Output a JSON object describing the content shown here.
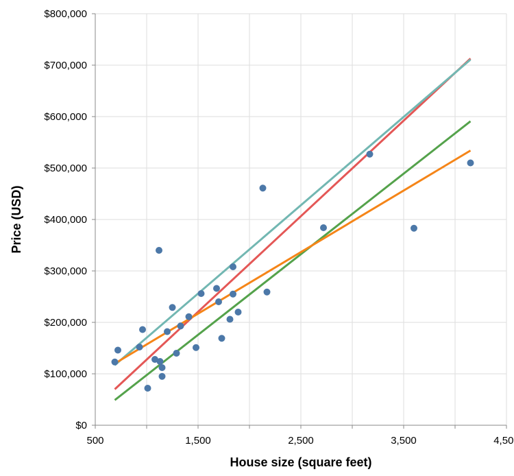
{
  "chart_data": {
    "type": "scatter",
    "xlabel": "House size (square feet)",
    "ylabel": "Price (USD)",
    "xlim": [
      500,
      4500
    ],
    "ylim": [
      0,
      800000
    ],
    "x_ticks": [
      500,
      1500,
      2500,
      3500,
      4500
    ],
    "x_tick_labels": [
      "500",
      "1,500",
      "2,500",
      "3,500",
      "4,500"
    ],
    "y_ticks": [
      0,
      100000,
      200000,
      300000,
      400000,
      500000,
      600000,
      700000,
      800000
    ],
    "y_tick_labels": [
      "$0",
      "$100,000",
      "$200,000",
      "$300,000",
      "$400,000",
      "$500,000",
      "$600,000",
      "$700,000",
      "$800,000"
    ],
    "x_minor_gridlines": [
      1000,
      2000,
      3000,
      4000
    ],
    "grid": true,
    "point_color": "#4c78a8",
    "points": [
      {
        "x": 690,
        "y": 123000
      },
      {
        "x": 720,
        "y": 146000
      },
      {
        "x": 930,
        "y": 152000
      },
      {
        "x": 960,
        "y": 186000
      },
      {
        "x": 1010,
        "y": 72000
      },
      {
        "x": 1080,
        "y": 128000
      },
      {
        "x": 1120,
        "y": 340000
      },
      {
        "x": 1130,
        "y": 124000
      },
      {
        "x": 1150,
        "y": 112000
      },
      {
        "x": 1150,
        "y": 95000
      },
      {
        "x": 1200,
        "y": 182000
      },
      {
        "x": 1250,
        "y": 229000
      },
      {
        "x": 1290,
        "y": 140000
      },
      {
        "x": 1330,
        "y": 193000
      },
      {
        "x": 1410,
        "y": 211000
      },
      {
        "x": 1480,
        "y": 151000
      },
      {
        "x": 1530,
        "y": 256000
      },
      {
        "x": 1680,
        "y": 266000
      },
      {
        "x": 1700,
        "y": 240000
      },
      {
        "x": 1730,
        "y": 169000
      },
      {
        "x": 1810,
        "y": 206000
      },
      {
        "x": 1840,
        "y": 255000
      },
      {
        "x": 1840,
        "y": 308000
      },
      {
        "x": 1890,
        "y": 220000
      },
      {
        "x": 2130,
        "y": 461000
      },
      {
        "x": 2170,
        "y": 259000
      },
      {
        "x": 2720,
        "y": 384000
      },
      {
        "x": 3170,
        "y": 527000
      },
      {
        "x": 3600,
        "y": 383000
      },
      {
        "x": 4150,
        "y": 510000
      }
    ],
    "series": [
      {
        "color": "#e45756",
        "x": [
          690,
          4150
        ],
        "y": [
          70000,
          713000
        ]
      },
      {
        "color": "#72b7b2",
        "x": [
          690,
          4150
        ],
        "y": [
          117000,
          711000
        ]
      },
      {
        "color": "#54a24b",
        "x": [
          690,
          4150
        ],
        "y": [
          49000,
          591000
        ]
      },
      {
        "color": "#f58518",
        "x": [
          690,
          4150
        ],
        "y": [
          120000,
          534000
        ]
      }
    ]
  }
}
